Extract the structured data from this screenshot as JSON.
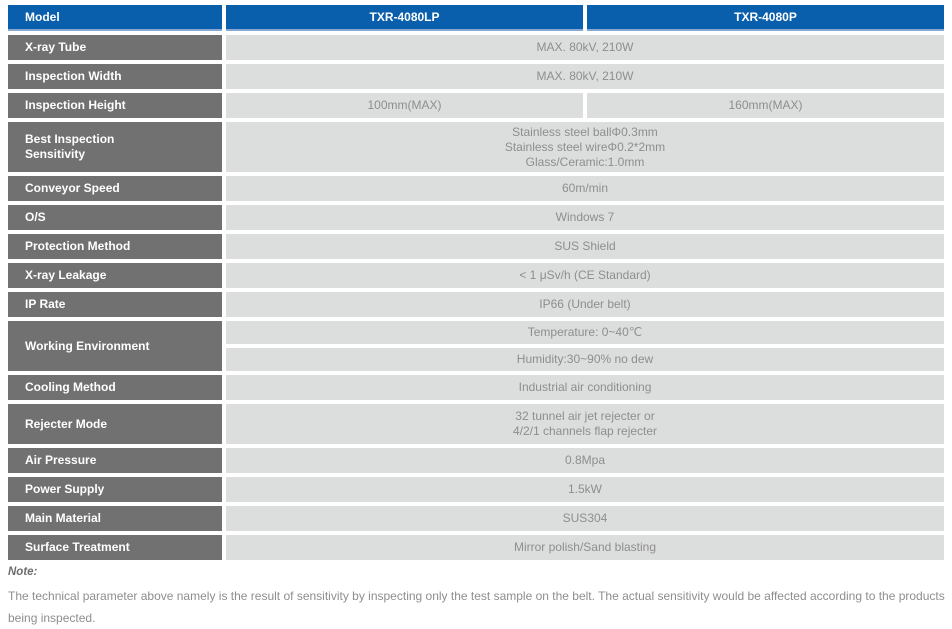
{
  "colors": {
    "header_blue": "#0A5FAC",
    "header_blue_edge": "#86A8D3",
    "label_gray": "#717171",
    "value_cell_gray": "#DCDDDD",
    "value_text_gray": "#8E8E8E"
  },
  "header": {
    "model_label": "Model",
    "col1": "TXR-4080LP",
    "col2": "TXR-4080P"
  },
  "rows": [
    {
      "label": "X-ray Tube",
      "value": "MAX. 80kV, 210W"
    },
    {
      "label": "Inspection Width",
      "value": "MAX. 80kV, 210W"
    },
    {
      "label": "Inspection Height",
      "value1": "100mm(MAX)",
      "value2": "160mm(MAX)"
    },
    {
      "label": "Best Inspection Sensitivity",
      "line1": "Stainless steel ballΦ0.3mm",
      "line2": "Stainless steel wireΦ0.2*2mm",
      "line3": "Glass/Ceramic:1.0mm"
    },
    {
      "label": "Conveyor Speed",
      "value": "60m/min"
    },
    {
      "label": "O/S",
      "value": "Windows 7"
    },
    {
      "label": "Protection Method",
      "value": "SUS Shield"
    },
    {
      "label": "X-ray Leakage",
      "value": "< 1 μSv/h (CE Standard)"
    },
    {
      "label": "IP Rate",
      "value": "IP66 (Under belt)"
    },
    {
      "label": "Working Environment",
      "sub1": "Temperature: 0~40℃",
      "sub2": "Humidity:30~90% no dew"
    },
    {
      "label": "Cooling Method",
      "value": "Industrial air conditioning"
    },
    {
      "label": "Rejecter Mode",
      "line1": "32 tunnel air jet rejecter or",
      "line2": "4/2/1 channels flap rejecter"
    },
    {
      "label": "Air Pressure",
      "value": "0.8Mpa"
    },
    {
      "label": "Power Supply",
      "value": "1.5kW"
    },
    {
      "label": "Main Material",
      "value": "SUS304"
    },
    {
      "label": "Surface Treatment",
      "value": "Mirror polish/Sand blasting"
    }
  ],
  "note": {
    "title": "Note:",
    "body": "The technical parameter above namely is the result of sensitivity by inspecting only the test sample on the belt. The actual sensitivity would be affected according to the products being inspected."
  }
}
